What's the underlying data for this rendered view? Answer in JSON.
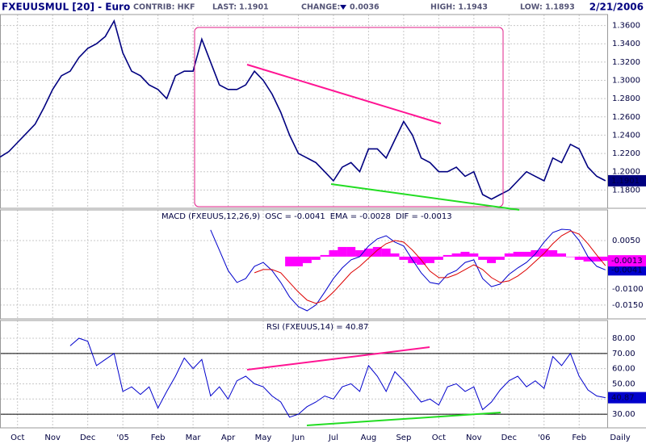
{
  "header": {
    "symbol": "FXEUUSMUL [20] - Euro",
    "contrib": "CONTRIB: HKF",
    "last_label": "LAST:",
    "last": "1.1901",
    "change_label": "CHANGE:",
    "change": "0.0036",
    "high": "HIGH: 1.1943",
    "low": "LOW: 1.1893",
    "date": "2/21/2006"
  },
  "chart_data": [
    {
      "type": "line",
      "color": "#000080",
      "grid": true,
      "x": [
        -0.5,
        -0.25,
        0,
        0.25,
        0.5,
        0.75,
        1,
        1.25,
        1.5,
        1.75,
        2,
        2.25,
        2.5,
        2.75,
        3,
        3.25,
        3.5,
        3.75,
        4,
        4.25,
        4.5,
        4.75,
        5,
        5.25,
        5.5,
        5.75,
        6,
        6.25,
        6.5,
        6.75,
        7,
        7.25,
        7.5,
        7.75,
        8,
        8.25,
        8.5,
        8.75,
        9,
        9.25,
        9.5,
        9.75,
        10,
        10.25,
        10.5,
        10.75,
        11,
        11.25,
        11.5,
        11.75,
        12,
        12.25,
        12.5,
        12.75,
        13,
        13.25,
        13.5,
        13.75,
        14,
        14.25,
        14.5,
        14.75,
        15,
        15.25,
        15.5,
        15.75,
        16,
        16.25,
        16.5,
        16.75
      ],
      "values": [
        1.216,
        1.222,
        1.232,
        1.242,
        1.252,
        1.27,
        1.29,
        1.305,
        1.31,
        1.325,
        1.335,
        1.34,
        1.348,
        1.365,
        1.33,
        1.31,
        1.305,
        1.295,
        1.29,
        1.28,
        1.305,
        1.31,
        1.31,
        1.345,
        1.32,
        1.295,
        1.29,
        1.29,
        1.295,
        1.31,
        1.3,
        1.285,
        1.265,
        1.24,
        1.22,
        1.215,
        1.21,
        1.2,
        1.19,
        1.205,
        1.21,
        1.2,
        1.225,
        1.225,
        1.215,
        1.235,
        1.255,
        1.24,
        1.215,
        1.21,
        1.2,
        1.2,
        1.205,
        1.195,
        1.2,
        1.175,
        1.17,
        1.175,
        1.18,
        1.19,
        1.2,
        1.195,
        1.19,
        1.215,
        1.21,
        1.23,
        1.225,
        1.205,
        1.195,
        1.1901
      ],
      "ylim": [
        1.16,
        1.372
      ],
      "yticks": [
        {
          "value": 1.36,
          "label": "1.3600"
        },
        {
          "value": 1.34,
          "label": "1.3400"
        },
        {
          "value": 1.32,
          "label": "1.3200"
        },
        {
          "value": 1.3,
          "label": "1.3000"
        },
        {
          "value": 1.28,
          "label": "1.2800"
        },
        {
          "value": 1.26,
          "label": "1.2600"
        },
        {
          "value": 1.24,
          "label": "1.2400"
        },
        {
          "value": 1.22,
          "label": "1.2200"
        },
        {
          "value": 1.2,
          "label": "1.2000"
        },
        {
          "value": 1.18,
          "label": "1.1800"
        }
      ]
    },
    {
      "type": "line",
      "title": "MACD (FXEUUS,12,26,9)",
      "grid": true,
      "x": [
        5.5,
        5.75,
        6,
        6.25,
        6.5,
        6.75,
        7,
        7.25,
        7.5,
        7.75,
        8,
        8.25,
        8.5,
        8.75,
        9,
        9.25,
        9.5,
        9.75,
        10,
        10.25,
        10.5,
        10.75,
        11,
        11.25,
        11.5,
        11.75,
        12,
        12.25,
        12.5,
        12.75,
        13,
        13.25,
        13.5,
        13.75,
        14,
        14.25,
        14.5,
        14.75,
        15,
        15.25,
        15.5,
        15.75,
        16,
        16.25,
        16.5,
        16.75
      ],
      "series": [
        {
          "name": "OSC = -0.0041",
          "color": "#0000cc",
          "flag": "-0.0041",
          "values": [
            0.0083,
            0.002,
            -0.0043,
            -0.008,
            -0.0068,
            -0.003,
            -0.0018,
            -0.0043,
            -0.008,
            -0.0125,
            -0.0155,
            -0.0168,
            -0.015,
            -0.011,
            -0.0068,
            -0.0035,
            -0.001,
            0,
            0.0033,
            0.0055,
            0.0065,
            0.0045,
            0.0033,
            -0.001,
            -0.005,
            -0.008,
            -0.0085,
            -0.0055,
            -0.0043,
            -0.0018,
            -0.001,
            -0.0068,
            -0.0093,
            -0.0085,
            -0.0055,
            -0.0035,
            -0.0018,
            0.0008,
            0.0045,
            0.0075,
            0.0085,
            0.0083,
            0.005,
            0,
            -0.003,
            -0.0041
          ]
        },
        {
          "name": "EMA = -0.0028",
          "color": "#dd0000",
          "values": [
            null,
            null,
            null,
            null,
            null,
            -0.005,
            -0.004,
            -0.004,
            -0.005,
            -0.008,
            -0.011,
            -0.0135,
            -0.0145,
            -0.0135,
            -0.011,
            -0.008,
            -0.005,
            -0.003,
            -0.0005,
            0.002,
            0.004,
            0.005,
            0.0045,
            0.002,
            -0.001,
            -0.0045,
            -0.0065,
            -0.0065,
            -0.0055,
            -0.004,
            -0.0025,
            -0.004,
            -0.0065,
            -0.008,
            -0.0075,
            -0.006,
            -0.004,
            -0.0015,
            0.001,
            0.004,
            0.0065,
            0.008,
            0.007,
            0.004,
            0.0005,
            -0.0028
          ]
        },
        {
          "name": "DIF = -0.0013",
          "color": "#ff00ff",
          "kind": "bar",
          "flag": "-0.0013",
          "values": [
            null,
            null,
            null,
            null,
            null,
            null,
            null,
            null,
            null,
            -0.003,
            -0.003,
            -0.002,
            -0.001,
            0.0005,
            0.002,
            0.003,
            0.003,
            0.002,
            0.0025,
            0.003,
            0.0025,
            0.001,
            -0.001,
            -0.002,
            -0.0025,
            -0.002,
            -0.001,
            0.0005,
            0.001,
            0.0015,
            0.001,
            -0.001,
            -0.002,
            -0.001,
            0.001,
            0.0015,
            0.0015,
            0.002,
            0.0025,
            0.002,
            0.001,
            0,
            -0.001,
            -0.0015,
            -0.0015,
            -0.0013
          ]
        }
      ],
      "ylim": [
        -0.0193,
        0.0145
      ],
      "yticks": [
        {
          "value": 0.005,
          "label": "0.0050"
        },
        {
          "value": -0.01,
          "label": "-0.0100"
        },
        {
          "value": -0.015,
          "label": "-0.0150"
        }
      ]
    },
    {
      "type": "line",
      "title": "RSI (FXEUUS,14) = 40.87",
      "color": "#0000cc",
      "flag": "40.87",
      "grid": true,
      "x": [
        1.5,
        1.75,
        2,
        2.25,
        2.5,
        2.75,
        3,
        3.25,
        3.5,
        3.75,
        4,
        4.25,
        4.5,
        4.75,
        5,
        5.25,
        5.5,
        5.75,
        6,
        6.25,
        6.5,
        6.75,
        7,
        7.25,
        7.5,
        7.75,
        8,
        8.25,
        8.5,
        8.75,
        9,
        9.25,
        9.5,
        9.75,
        10,
        10.25,
        10.5,
        10.75,
        11,
        11.25,
        11.5,
        11.75,
        12,
        12.25,
        12.5,
        12.75,
        13,
        13.25,
        13.5,
        13.75,
        14,
        14.25,
        14.5,
        14.75,
        15,
        15.25,
        15.5,
        15.75,
        16,
        16.25,
        16.5,
        16.75
      ],
      "values": [
        75,
        80,
        78,
        62,
        66,
        70,
        45,
        48,
        43,
        48,
        34,
        45,
        55,
        67,
        60,
        66,
        42,
        48,
        40,
        52,
        55,
        50,
        48,
        42,
        38,
        28,
        30,
        35,
        38,
        42,
        40,
        48,
        50,
        45,
        62,
        55,
        45,
        58,
        52,
        45,
        38,
        40,
        36,
        48,
        50,
        45,
        48,
        33,
        38,
        46,
        52,
        55,
        48,
        52,
        47,
        68,
        62,
        70,
        55,
        46,
        42,
        40.87
      ],
      "ylim": [
        21,
        91.7
      ],
      "yticks": [
        {
          "value": 80,
          "label": "80.00"
        },
        {
          "value": 70,
          "label": "70.00"
        },
        {
          "value": 60,
          "label": "60.00"
        },
        {
          "value": 50,
          "label": "50.00"
        },
        {
          "value": 40,
          "label": "40.00"
        },
        {
          "value": 30,
          "label": "30.00"
        }
      ],
      "reference_lines": [
        70,
        30
      ],
      "xlim": [
        -0.5,
        16.8
      ],
      "xticks": [
        {
          "value": 0,
          "label": "Oct"
        },
        {
          "value": 1,
          "label": "Nov"
        },
        {
          "value": 2,
          "label": "Dec"
        },
        {
          "value": 3,
          "label": "'05"
        },
        {
          "value": 4,
          "label": "Feb"
        },
        {
          "value": 5,
          "label": "Mar"
        },
        {
          "value": 6,
          "label": "Apr"
        },
        {
          "value": 7,
          "label": "May"
        },
        {
          "value": 8,
          "label": "Jun"
        },
        {
          "value": 9,
          "label": "Jul"
        },
        {
          "value": 10,
          "label": "Aug"
        },
        {
          "value": 11,
          "label": "Sep"
        },
        {
          "value": 12,
          "label": "Oct"
        },
        {
          "value": 13,
          "label": "Nov"
        },
        {
          "value": 14,
          "label": "Dec"
        },
        {
          "value": 15,
          "label": "'06"
        },
        {
          "value": 16,
          "label": "Feb"
        }
      ],
      "period_label": "Daily"
    }
  ]
}
